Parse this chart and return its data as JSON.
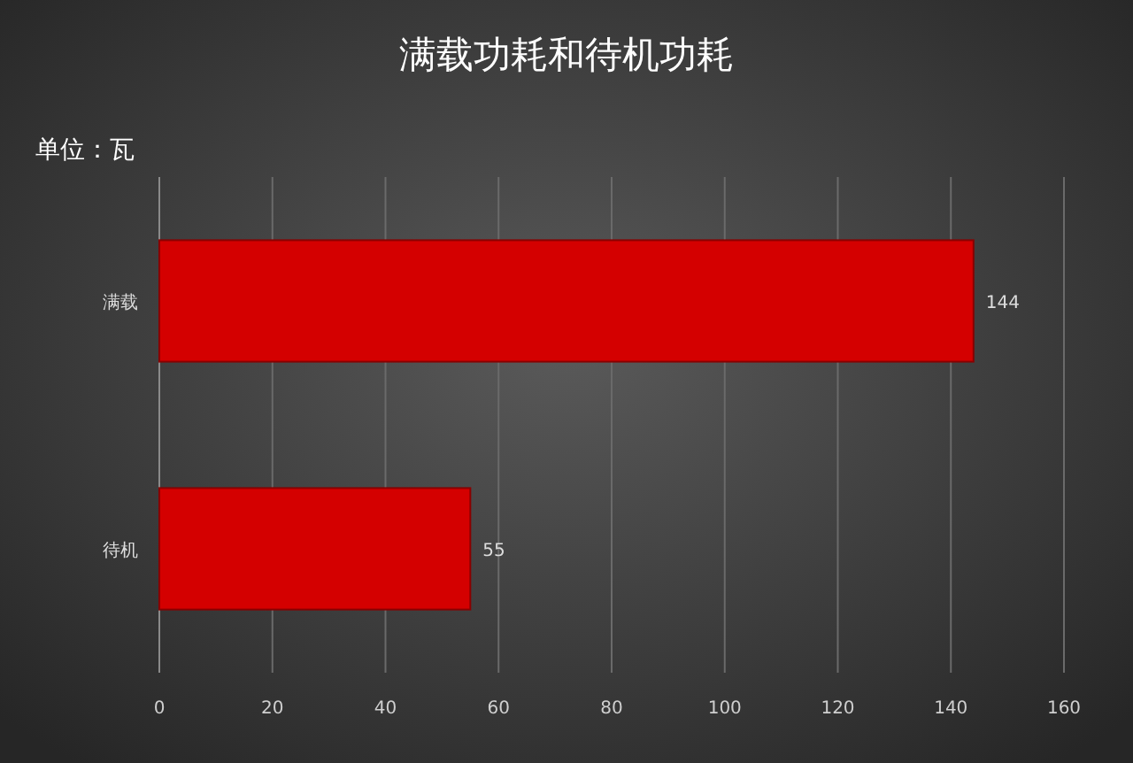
{
  "chart_data": {
    "type": "bar",
    "orientation": "horizontal",
    "title": "满载功耗和待机功耗",
    "categories": [
      "满载",
      "待机"
    ],
    "values": [
      144,
      55
    ],
    "color": "#d40000",
    "xlim": [
      0,
      160
    ],
    "xticks": [
      0,
      20,
      40,
      60,
      80,
      100,
      120,
      140,
      160
    ],
    "grid": "x",
    "data_labels": true,
    "annotations": [
      "单位：瓦"
    ]
  }
}
